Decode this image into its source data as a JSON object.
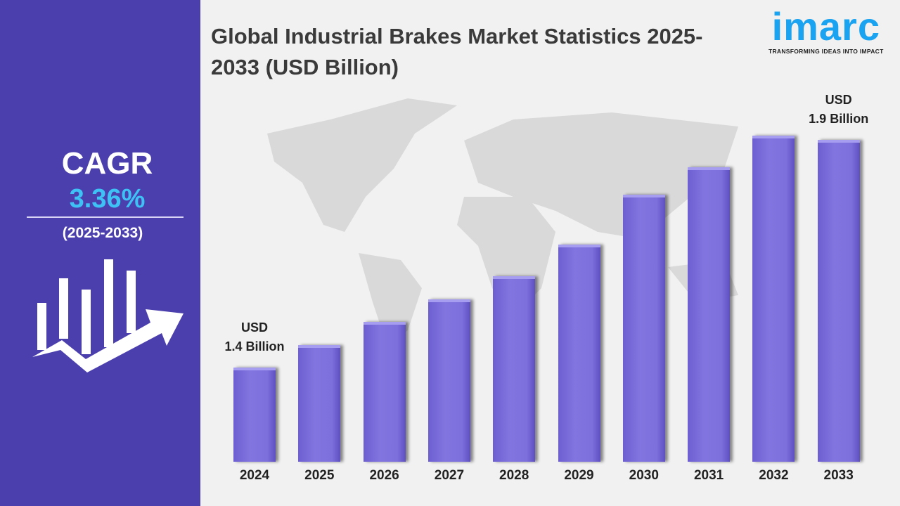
{
  "sidebar": {
    "cagr_label": "CAGR",
    "cagr_value": "3.36%",
    "period": "(2025-2033)",
    "icon": "growth-chart-arrow-icon"
  },
  "logo": {
    "wordmark": "imarc",
    "tagline": "TRANSFORMING IDEAS INTO IMPACT",
    "color": "#1aa3f0"
  },
  "chart_data": {
    "type": "bar",
    "title": "Global Industrial Brakes Market Statistics 2025-2033 (USD Billion)",
    "categories": [
      "2024",
      "2025",
      "2026",
      "2027",
      "2028",
      "2029",
      "2030",
      "2031",
      "2032",
      "2033"
    ],
    "values": [
      1.4,
      1.45,
      1.5,
      1.55,
      1.6,
      1.67,
      1.78,
      1.84,
      1.91,
      1.9
    ],
    "annotations": [
      {
        "category": "2024",
        "line1": "USD",
        "line2": "1.4 Billion"
      },
      {
        "category": "2033",
        "line1": "USD",
        "line2": "1.9 Billion"
      }
    ],
    "bar_color": "#7b6ddb",
    "grid": false
  }
}
